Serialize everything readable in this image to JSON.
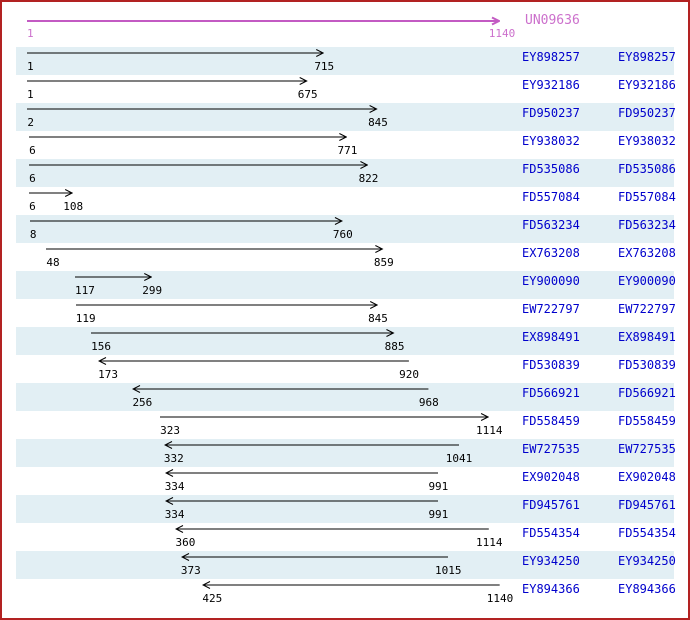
{
  "header": {
    "sequence_id": "UN09636",
    "start_label": "1",
    "end_label": "1140"
  },
  "colors": {
    "border": "#B22222",
    "magenta_line": "#C35AC3",
    "magenta_text": "#CC70CC",
    "band": "#E2EFF4",
    "accession": "#0000CC",
    "arrow": "#000000"
  },
  "chart_data": {
    "type": "bar",
    "title": "UN09636",
    "xlabel": "",
    "ylabel": "",
    "x_range": [
      1,
      1140
    ],
    "legend": "none",
    "grid": false,
    "items": [
      {
        "id": "EY898257",
        "start": 1,
        "end": 715,
        "dir": "right"
      },
      {
        "id": "EY932186",
        "start": 1,
        "end": 675,
        "dir": "right"
      },
      {
        "id": "FD950237",
        "start": 2,
        "end": 845,
        "dir": "right"
      },
      {
        "id": "EY938032",
        "start": 6,
        "end": 771,
        "dir": "right"
      },
      {
        "id": "FD535086",
        "start": 6,
        "end": 822,
        "dir": "right"
      },
      {
        "id": "FD557084",
        "start": 6,
        "end": 108,
        "dir": "right"
      },
      {
        "id": "FD563234",
        "start": 8,
        "end": 760,
        "dir": "right"
      },
      {
        "id": "EX763208",
        "start": 48,
        "end": 859,
        "dir": "right"
      },
      {
        "id": "EY900090",
        "start": 117,
        "end": 299,
        "dir": "right"
      },
      {
        "id": "EW722797",
        "start": 119,
        "end": 845,
        "dir": "right"
      },
      {
        "id": "EX898491",
        "start": 156,
        "end": 885,
        "dir": "right"
      },
      {
        "id": "FD530839",
        "start": 173,
        "end": 920,
        "dir": "left"
      },
      {
        "id": "FD566921",
        "start": 256,
        "end": 968,
        "dir": "left"
      },
      {
        "id": "FD558459",
        "start": 323,
        "end": 1114,
        "dir": "right"
      },
      {
        "id": "EW727535",
        "start": 332,
        "end": 1041,
        "dir": "left"
      },
      {
        "id": "EX902048",
        "start": 334,
        "end": 991,
        "dir": "left"
      },
      {
        "id": "FD945761",
        "start": 334,
        "end": 991,
        "dir": "left"
      },
      {
        "id": "FD554354",
        "start": 360,
        "end": 1114,
        "dir": "left"
      },
      {
        "id": "EY934250",
        "start": 373,
        "end": 1015,
        "dir": "left"
      },
      {
        "id": "EY894366",
        "start": 425,
        "end": 1140,
        "dir": "left"
      }
    ]
  }
}
